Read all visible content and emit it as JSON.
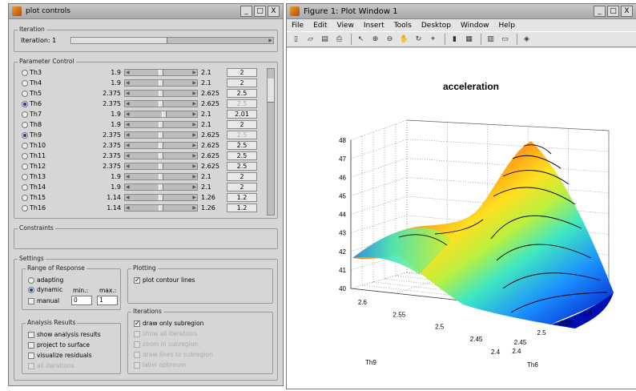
{
  "left_window": {
    "title": "plot controls",
    "btn_min": "_",
    "btn_max": "□",
    "btn_close": "X",
    "iteration": {
      "legend": "Iteration",
      "label": "Iteration: 1"
    },
    "parameter_control": {
      "legend": "Parameter Control",
      "rows": [
        {
          "name": "Th3",
          "min": "1.9",
          "max": "2.1",
          "value": "2",
          "selected": false,
          "pos": 0.5,
          "disabled": false
        },
        {
          "name": "Th4",
          "min": "1.9",
          "max": "2.1",
          "value": "2",
          "selected": false,
          "pos": 0.5,
          "disabled": false
        },
        {
          "name": "Th5",
          "min": "2.375",
          "max": "2.625",
          "value": "2.5",
          "selected": false,
          "pos": 0.5,
          "disabled": false
        },
        {
          "name": "Th6",
          "min": "2.375",
          "max": "2.625",
          "value": "2.5",
          "selected": true,
          "pos": 0.5,
          "disabled": true
        },
        {
          "name": "Th7",
          "min": "1.9",
          "max": "2.1",
          "value": "2.01",
          "selected": false,
          "pos": 0.55,
          "disabled": false
        },
        {
          "name": "Th8",
          "min": "1.9",
          "max": "2.1",
          "value": "2",
          "selected": false,
          "pos": 0.5,
          "disabled": false
        },
        {
          "name": "Th9",
          "min": "2.375",
          "max": "2.625",
          "value": "2.5",
          "selected": true,
          "pos": 0.5,
          "disabled": true
        },
        {
          "name": "Th10",
          "min": "2.375",
          "max": "2.625",
          "value": "2.5",
          "selected": false,
          "pos": 0.5,
          "disabled": false
        },
        {
          "name": "Th11",
          "min": "2.375",
          "max": "2.625",
          "value": "2.5",
          "selected": false,
          "pos": 0.5,
          "disabled": false
        },
        {
          "name": "Th12",
          "min": "2.375",
          "max": "2.625",
          "value": "2.5",
          "selected": false,
          "pos": 0.5,
          "disabled": false
        },
        {
          "name": "Th13",
          "min": "1.9",
          "max": "2.1",
          "value": "2",
          "selected": false,
          "pos": 0.5,
          "disabled": false
        },
        {
          "name": "Th14",
          "min": "1.9",
          "max": "2.1",
          "value": "2",
          "selected": false,
          "pos": 0.5,
          "disabled": false
        },
        {
          "name": "Th15",
          "min": "1.14",
          "max": "1.26",
          "value": "1.2",
          "selected": false,
          "pos": 0.5,
          "disabled": false
        },
        {
          "name": "Th16",
          "min": "1.14",
          "max": "1.26",
          "value": "1.2",
          "selected": false,
          "pos": 0.5,
          "disabled": false
        }
      ]
    },
    "constraints": {
      "legend": "Constraints"
    },
    "settings": {
      "legend": "Settings",
      "range": {
        "legend": "Range of Response",
        "adapting": "adapting",
        "dynamic": "dynamic",
        "manual": "manual",
        "min_label": "min.:",
        "max_label": "max.:",
        "min_value": "0",
        "max_value": "1"
      },
      "plotting": {
        "legend": "Plotting",
        "contour": "plot contour lines"
      },
      "analysis": {
        "legend": "Analysis Results",
        "show": "show analysis results",
        "project": "project to surface",
        "residuals": "visualize residuals",
        "all_iter": "all iterations"
      },
      "iterations": {
        "legend": "Iterations",
        "subregion": "draw only subregion",
        "opt1": "show all iterations",
        "opt2": "zoom in subregion",
        "opt3": "draw lines to subregion",
        "opt4": "label optimum"
      }
    }
  },
  "right_window": {
    "title": "Figure 1: Plot Window 1",
    "btn_min": "_",
    "btn_max": "□",
    "btn_close": "X",
    "menu": [
      "File",
      "Edit",
      "View",
      "Insert",
      "Tools",
      "Desktop",
      "Window",
      "Help"
    ],
    "toolbar_icons": [
      "new-icon",
      "open-icon",
      "save-icon",
      "print-icon",
      "pointer-icon",
      "zoom-in-icon",
      "zoom-out-icon",
      "pan-icon",
      "rotate-icon",
      "data-cursor-icon",
      "colorbar-icon",
      "legend-icon",
      "grid-icon",
      "plot-browser-icon",
      "colormap-icon"
    ],
    "toolbar_glyphs": [
      "▯",
      "▱",
      "▤",
      "⎙",
      "↖",
      "⊕",
      "⊖",
      "✋",
      "↻",
      "⌖",
      "▮",
      "▦",
      "▥",
      "▭",
      "◈"
    ]
  },
  "chart_data": {
    "type": "surface",
    "title": "acceleration",
    "xlabel": "Th6",
    "ylabel": "Th9",
    "zticks": [
      "40",
      "41",
      "42",
      "43",
      "44",
      "45",
      "46",
      "47",
      "48"
    ],
    "xticks": [
      "2.4",
      "2.45",
      "2.5",
      "2.55",
      "2.6"
    ],
    "yticks": [
      "2.4",
      "2.45",
      "2.5",
      "2.55",
      "2.6"
    ],
    "zlim": [
      40,
      48
    ],
    "grid": true,
    "contour_lines": true
  }
}
